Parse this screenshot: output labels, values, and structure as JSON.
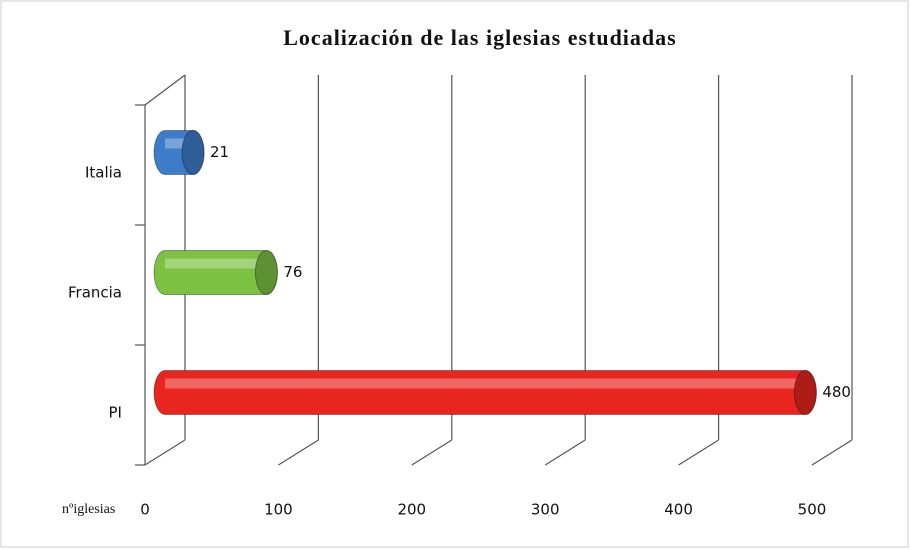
{
  "chart_data": {
    "type": "bar",
    "orientation": "horizontal",
    "style": "3d-cylinder",
    "title": "Localización de las iglesias estudiadas",
    "x_label": "nºiglesias",
    "categories": [
      "Italia",
      "Francia",
      "PI"
    ],
    "values": [
      21,
      76,
      480
    ],
    "colors": [
      "#3d7cc9",
      "#7cc142",
      "#e8251f"
    ],
    "xlim": [
      0,
      500
    ],
    "xticks": [
      0,
      100,
      200,
      300,
      400,
      500
    ],
    "grid": true
  }
}
